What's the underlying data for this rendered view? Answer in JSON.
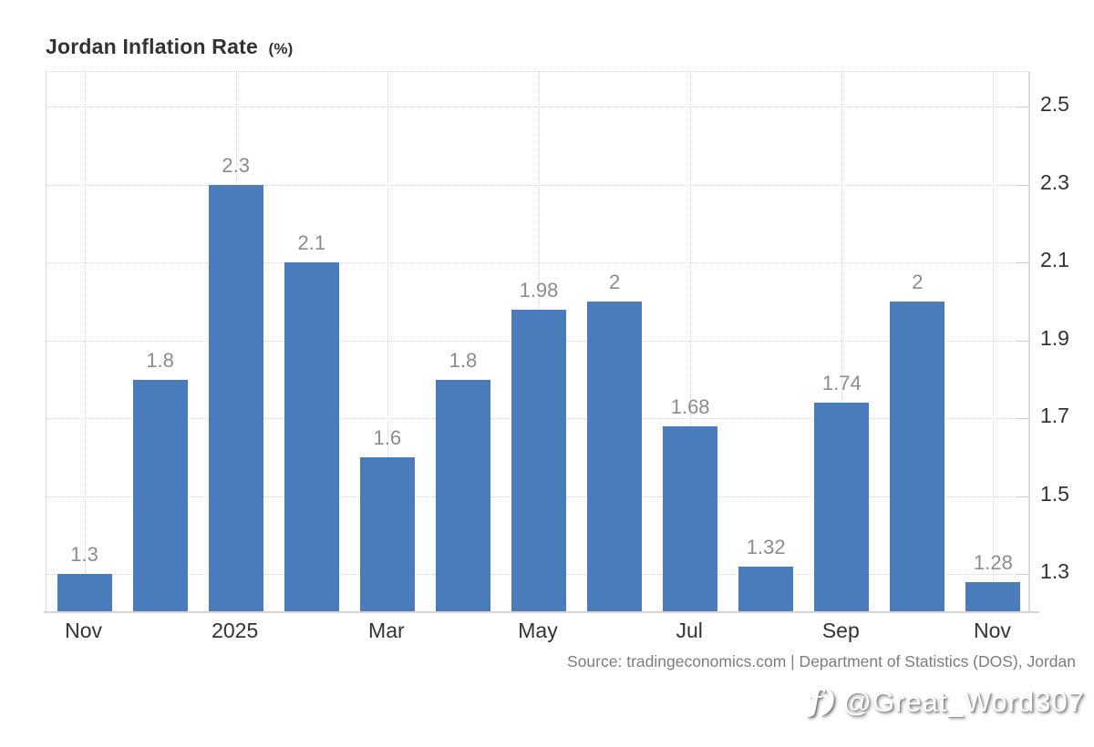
{
  "title": {
    "text": "Jordan Inflation Rate",
    "unit": "(%)"
  },
  "source_line": "Source: tradingeconomics.com | Department of Statistics (DOS), Jordan",
  "watermark": {
    "icon": "f)",
    "handle": "@Great_Word307"
  },
  "colors": {
    "bar": "#4a7cbc",
    "grid": "#d9d9d9",
    "axis_text": "#333333",
    "value_label": "#8c8c8c",
    "source_text": "#7d7d7d",
    "background": "#ffffff"
  },
  "chart_data": {
    "type": "bar",
    "title": "Jordan Inflation Rate (%)",
    "xlabel": "",
    "ylabel": "",
    "categories": [
      "Nov",
      "",
      "2025",
      "",
      "Mar",
      "",
      "May",
      "",
      "Jul",
      "",
      "Sep",
      "",
      "Nov"
    ],
    "values": [
      1.3,
      1.8,
      2.3,
      2.1,
      1.6,
      1.8,
      1.98,
      2,
      1.68,
      1.32,
      1.74,
      2,
      1.28
    ],
    "bar_labels": [
      "1.3",
      "1.8",
      "2.3",
      "2.1",
      "1.6",
      "1.8",
      "1.98",
      "2",
      "1.68",
      "1.32",
      "1.74",
      "2",
      "1.28"
    ],
    "x_tick_labels": [
      "Nov",
      "2025",
      "Mar",
      "May",
      "Jul",
      "Sep",
      "Nov"
    ],
    "x_tick_indices": [
      0,
      2,
      4,
      6,
      8,
      10,
      12
    ],
    "y_ticks": [
      1.3,
      1.5,
      1.7,
      1.9,
      2.1,
      2.3,
      2.5
    ],
    "ylim": [
      1.2,
      2.59
    ],
    "grid": "dotted",
    "legend_position": "none",
    "y_axis_side": "right"
  }
}
